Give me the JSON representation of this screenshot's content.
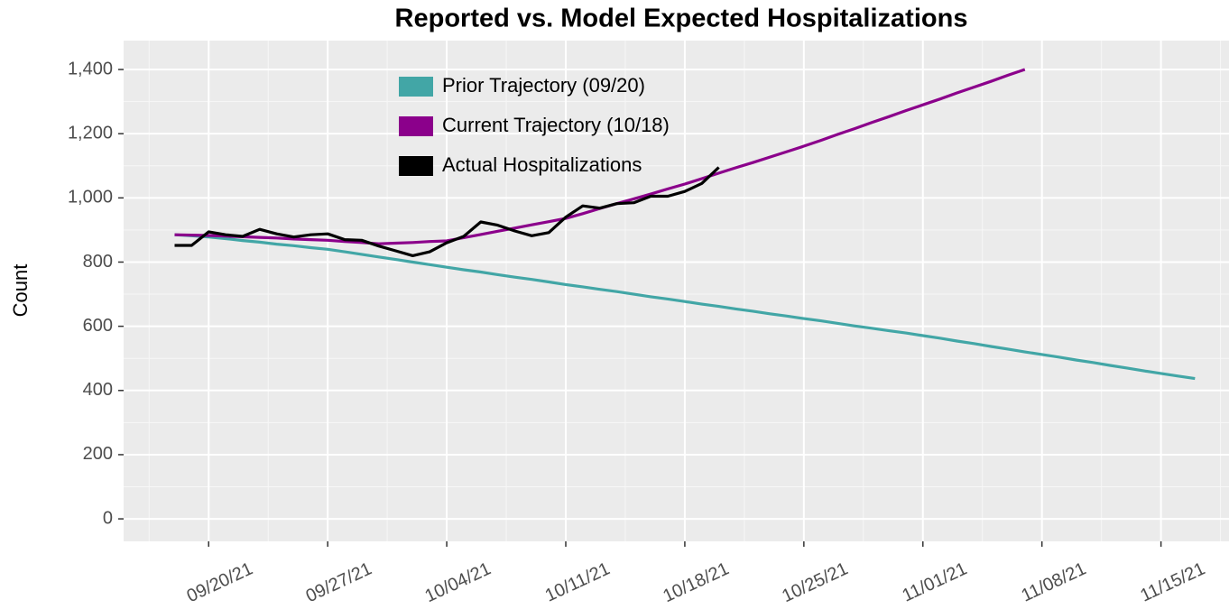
{
  "chart_data": {
    "type": "line",
    "title": "Reported vs. Model Expected Hospitalizations",
    "ylabel": "Count",
    "x": [
      "09/18/21",
      "09/19/21",
      "09/20/21",
      "09/21/21",
      "09/22/21",
      "09/23/21",
      "09/24/21",
      "09/25/21",
      "09/26/21",
      "09/27/21",
      "09/28/21",
      "09/29/21",
      "09/30/21",
      "10/01/21",
      "10/02/21",
      "10/03/21",
      "10/04/21",
      "10/05/21",
      "10/06/21",
      "10/07/21",
      "10/08/21",
      "10/09/21",
      "10/10/21",
      "10/11/21",
      "10/12/21",
      "10/13/21",
      "10/14/21",
      "10/15/21",
      "10/16/21",
      "10/17/21",
      "10/18/21",
      "10/19/21",
      "10/20/21",
      "10/21/21",
      "10/22/21",
      "10/23/21",
      "10/24/21",
      "10/25/21",
      "10/26/21",
      "10/27/21",
      "10/28/21",
      "10/29/21",
      "10/30/21",
      "10/31/21",
      "11/01/21",
      "11/02/21",
      "11/03/21",
      "11/04/21",
      "11/05/21",
      "11/06/21",
      "11/07/21",
      "11/08/21",
      "11/09/21",
      "11/10/21",
      "11/11/21",
      "11/12/21",
      "11/13/21",
      "11/14/21",
      "11/15/21",
      "11/16/21",
      "11/17/21"
    ],
    "series": [
      {
        "name": "Prior Trajectory (09/20)",
        "color": "#42a6a6",
        "values": [
          885,
          882,
          878,
          873,
          867,
          862,
          856,
          851,
          845,
          840,
          832,
          824,
          816,
          808,
          800,
          792,
          784,
          776,
          769,
          761,
          753,
          746,
          738,
          730,
          723,
          715,
          708,
          700,
          692,
          685,
          677,
          669,
          662,
          654,
          647,
          639,
          632,
          624,
          617,
          609,
          601,
          594,
          586,
          579,
          571,
          563,
          554,
          546,
          537,
          529,
          520,
          512,
          504,
          495,
          487,
          478,
          470,
          461,
          453,
          445,
          437
        ]
      },
      {
        "name": "Current Trajectory (10/18)",
        "color": "#8b008b",
        "values": [
          885,
          884,
          883,
          881,
          879,
          877,
          875,
          872,
          870,
          868,
          864,
          861,
          857,
          859,
          861,
          864,
          866,
          876,
          886,
          896,
          906,
          916,
          926,
          936,
          951,
          967,
          982,
          997,
          1012,
          1028,
          1043,
          1060,
          1077,
          1094,
          1110,
          1127,
          1144,
          1161,
          1179,
          1198,
          1216,
          1235,
          1253,
          1272,
          1290,
          1308,
          1327,
          1345,
          1363,
          1382,
          1400,
          null,
          null,
          null,
          null,
          null,
          null,
          null,
          null,
          null,
          null
        ]
      },
      {
        "name": "Actual Hospitalizations",
        "color": "#000000",
        "values": [
          852,
          852,
          894,
          885,
          880,
          902,
          888,
          878,
          885,
          888,
          870,
          868,
          850,
          835,
          820,
          832,
          860,
          880,
          925,
          915,
          897,
          882,
          892,
          940,
          975,
          968,
          982,
          985,
          1005,
          1005,
          1020,
          1045,
          1095,
          null,
          null,
          null,
          null,
          null,
          null,
          null,
          null,
          null,
          null,
          null,
          null,
          null,
          null,
          null,
          null,
          null,
          null,
          null,
          null,
          null,
          null,
          null,
          null,
          null,
          null,
          null,
          null
        ]
      }
    ],
    "xlim": [
      "09/15/21",
      "11/19/21"
    ],
    "xticks": [
      "09/20/21",
      "09/27/21",
      "10/04/21",
      "10/11/21",
      "10/18/21",
      "10/25/21",
      "11/01/21",
      "11/08/21",
      "11/15/21"
    ],
    "ylim": [
      -70,
      1490
    ],
    "yticks": [
      0,
      200,
      400,
      600,
      800,
      {
        "value": 1000,
        "label": "1,000"
      },
      {
        "value": 1200,
        "label": "1,200"
      },
      {
        "value": 1400,
        "label": "1,400"
      }
    ],
    "grid": true
  }
}
